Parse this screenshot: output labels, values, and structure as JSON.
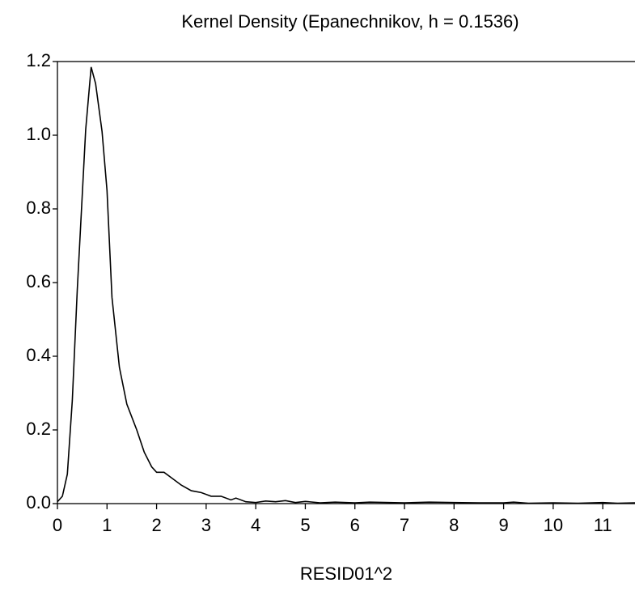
{
  "chart_data": {
    "type": "line",
    "title": "Kernel Density (Epanechnikov, h =  0.1536)",
    "x_label": "RESID01^2",
    "color": "#000000",
    "x": [
      0,
      0.1,
      0.2,
      0.3,
      0.4,
      0.57,
      0.68,
      0.77,
      0.9,
      1.0,
      1.1,
      1.25,
      1.4,
      1.6,
      1.75,
      1.9,
      2.0,
      2.15,
      2.3,
      2.5,
      2.7,
      2.9,
      3.1,
      3.3,
      3.5,
      3.6,
      3.8,
      4.0,
      4.2,
      4.4,
      4.6,
      4.8,
      5.0,
      5.3,
      5.6,
      6.0,
      6.3,
      7.0,
      7.5,
      8.0,
      8.5,
      9.0,
      9.2,
      9.5,
      10.0,
      10.5,
      11.0,
      11.3,
      11.65
    ],
    "values": [
      0.005,
      0.02,
      0.08,
      0.28,
      0.58,
      1.015,
      1.185,
      1.14,
      1.01,
      0.85,
      0.56,
      0.37,
      0.27,
      0.2,
      0.14,
      0.1,
      0.085,
      0.085,
      0.07,
      0.05,
      0.035,
      0.03,
      0.02,
      0.02,
      0.01,
      0.015,
      0.005,
      0.003,
      0.007,
      0.005,
      0.008,
      0.003,
      0.006,
      0.002,
      0.004,
      0.002,
      0.004,
      0.002,
      0.004,
      0.003,
      0.002,
      0.002,
      0.004,
      0.001,
      0.002,
      0.001,
      0.003,
      0.001,
      0.002
    ],
    "xlim": [
      0,
      11.65
    ],
    "ylim": [
      0,
      1.2
    ],
    "xticks": [
      0,
      1,
      2,
      3,
      4,
      5,
      6,
      7,
      8,
      9,
      10,
      11
    ],
    "yticks": [
      {
        "value": 0,
        "label": "0.0"
      },
      0.2,
      0.4,
      0.6,
      0.8,
      {
        "value": 1,
        "label": "1.0"
      },
      1.2
    ]
  }
}
